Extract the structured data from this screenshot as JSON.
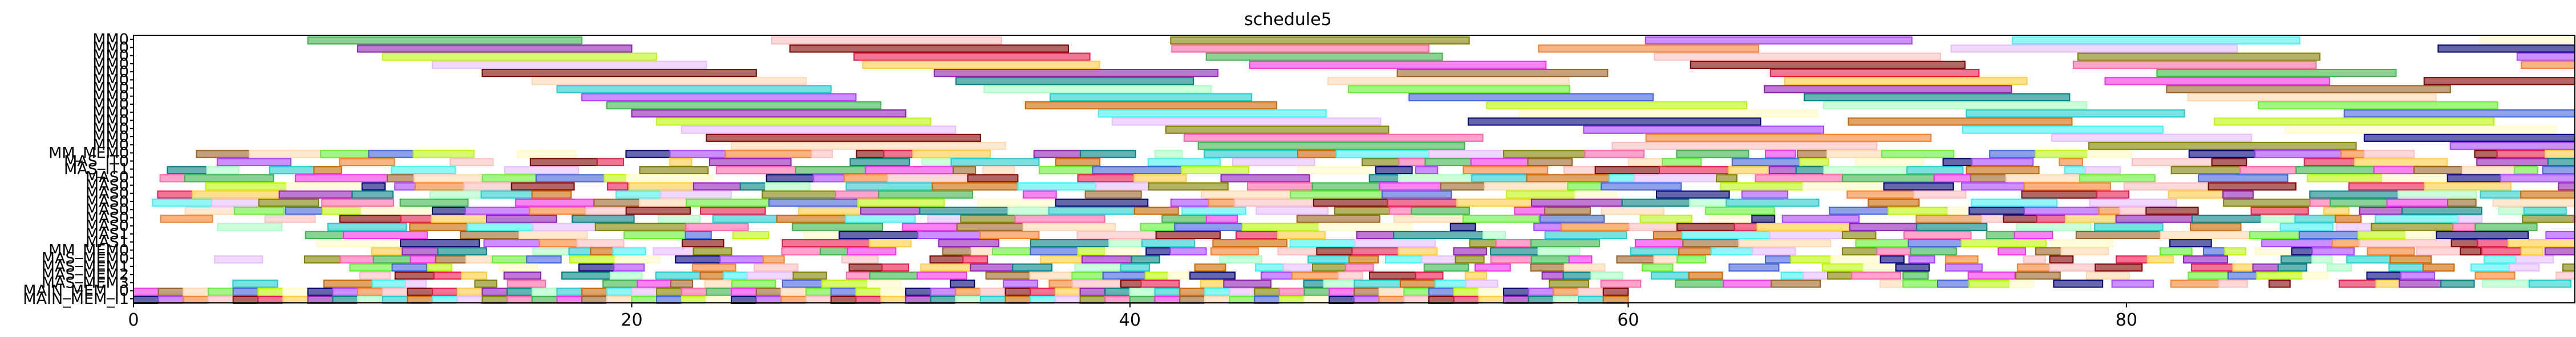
{
  "chart_data": {
    "type": "gantt",
    "title": "schedule5",
    "xlim": [
      0,
      98
    ],
    "xticks": [
      0,
      20,
      40,
      60,
      80
    ],
    "rows": [
      "MM0",
      "MM0",
      "MM0",
      "MM0",
      "MM0",
      "MM0",
      "MM0",
      "MM0",
      "MM0",
      "MM0",
      "MM0",
      "MM0",
      "MM0",
      "MM0",
      "MM_MEM0",
      "MAS_IT0",
      "MAS_IT1",
      "MAS0",
      "MAS0",
      "MAS0",
      "MAS0",
      "MAS0",
      "MAS0",
      "MAS0",
      "MAS1",
      "MAS1",
      "MM_MEM0",
      "MAS_MEM0",
      "MAS_MEM1",
      "MAS_MEM2",
      "MAS_MEM3",
      "MAIN_MEM_I0",
      "MAIN_MEM_I1"
    ],
    "palette": [
      "#3cb44b",
      "#4363d8",
      "#f58231",
      "#911eb4",
      "#46f0f0",
      "#f032e6",
      "#bcf60c",
      "#fabebe",
      "#008080",
      "#e6beff",
      "#9a6324",
      "#fffac8",
      "#800000",
      "#aaffc3",
      "#808000",
      "#ffd8b1",
      "#000075",
      "#e6194b",
      "#22cccc",
      "#ff66aa",
      "#66ee33",
      "#aa44ff",
      "#ffcc44",
      "#cc6600"
    ],
    "rules": {
      "mm_rows": 14,
      "mm_starts": [
        7,
        9,
        10,
        12,
        14,
        16,
        17,
        18,
        19,
        20,
        21,
        22,
        23,
        24
      ],
      "mm_duration": 11,
      "mm_step": 1.5,
      "dense_rows_start": 14,
      "dense_start": 0,
      "dense_end": 98,
      "mem_end": 60
    }
  }
}
